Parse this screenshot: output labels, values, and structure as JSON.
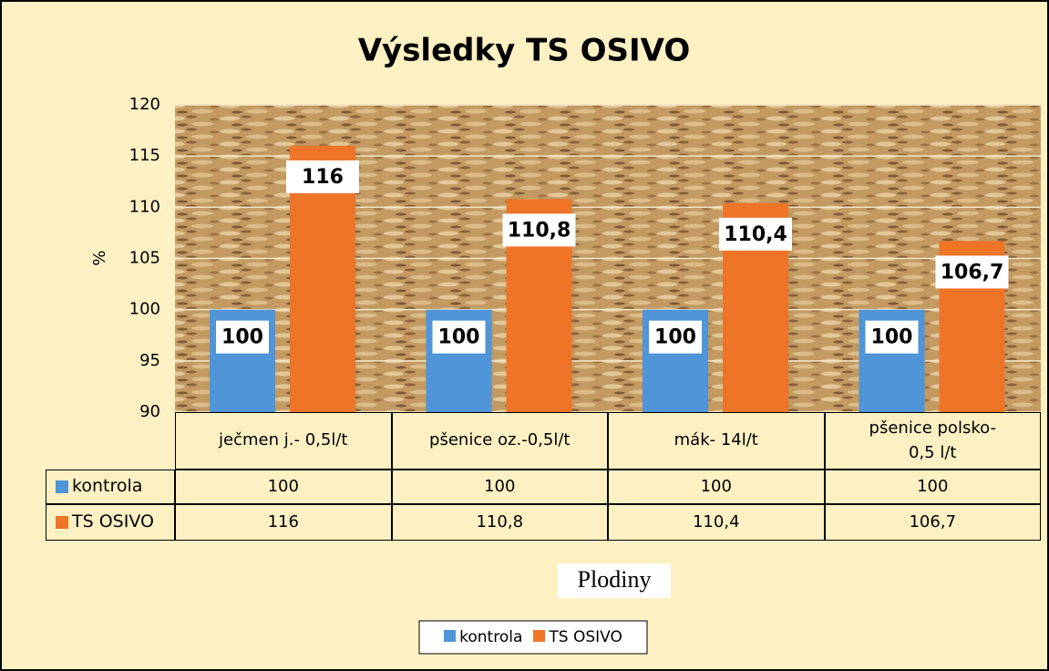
{
  "chart_data": {
    "type": "bar",
    "title": "Výsledky TS OSIVO",
    "y_label": "%",
    "x_label": "Plodiny",
    "categories": [
      "ječmen j.- 0,5l/t",
      "pšenice oz.-0,5l/t",
      "mák- 14l/t",
      "pšenice polsko-0,5 l/t"
    ],
    "series": [
      {
        "name": "kontrola",
        "color": "#4f95d8",
        "values": [
          100,
          100,
          100,
          100
        ],
        "value_labels": [
          "100",
          "100",
          "100",
          "100"
        ]
      },
      {
        "name": "TS OSIVO",
        "color": "#ee7428",
        "values": [
          116,
          110.8,
          110.4,
          106.7
        ],
        "value_labels": [
          "116",
          "110,8",
          "110,4",
          "106,7"
        ]
      }
    ],
    "ylim": [
      90,
      120
    ],
    "yticks": [
      90,
      95,
      100,
      105,
      110,
      115,
      120
    ],
    "grid": true,
    "legend": "bottom"
  }
}
